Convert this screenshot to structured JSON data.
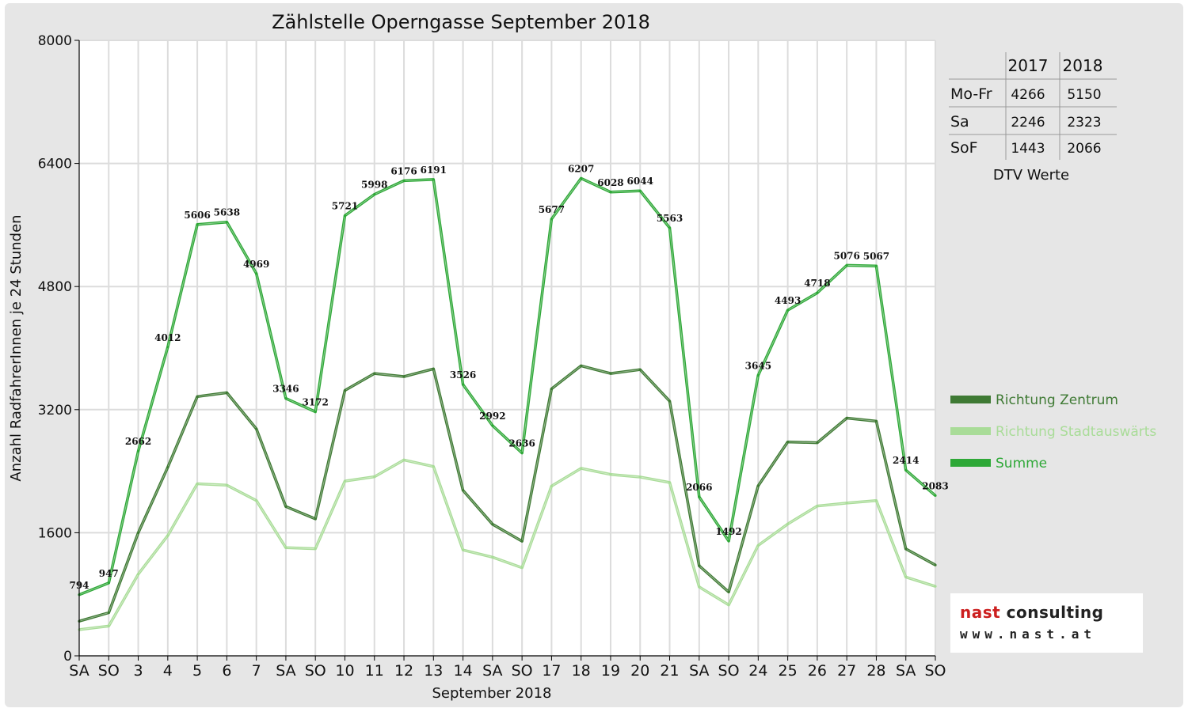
{
  "chart_data": {
    "type": "line",
    "title": "Zählstelle Operngasse September 2018",
    "xlabel": "September 2018",
    "ylabel": "Anzahl RadfahrerInnen je 24 Stunden",
    "ylim": [
      0,
      8000
    ],
    "yticks": [
      0,
      1600,
      3200,
      4800,
      6400,
      8000
    ],
    "grid": true,
    "legend_position": "right",
    "categories": [
      "SA",
      "SO",
      "3",
      "4",
      "5",
      "6",
      "7",
      "SA",
      "SO",
      "10",
      "11",
      "12",
      "13",
      "14",
      "SA",
      "SO",
      "17",
      "18",
      "19",
      "20",
      "21",
      "SA",
      "SO",
      "24",
      "25",
      "26",
      "27",
      "28",
      "SA",
      "SO"
    ],
    "weekend_flags": [
      false,
      true,
      false,
      false,
      false,
      false,
      false,
      false,
      true,
      false,
      false,
      false,
      false,
      false,
      false,
      true,
      false,
      false,
      false,
      false,
      false,
      false,
      true,
      false,
      false,
      false,
      false,
      false,
      false,
      true
    ],
    "series": [
      {
        "name": "Richtung Zentrum",
        "color": "#3f7a34",
        "values": [
          450,
          560,
          1600,
          2450,
          3370,
          3420,
          2950,
          1940,
          1780,
          3450,
          3670,
          3630,
          3730,
          2150,
          1710,
          1490,
          3470,
          3770,
          3670,
          3720,
          3310,
          1170,
          830,
          2210,
          2780,
          2770,
          3090,
          3050,
          1390,
          1180
        ]
      },
      {
        "name": "Richtung Stadtauswärts",
        "color": "#a9dc98",
        "values": [
          340,
          387,
          1062,
          1562,
          2236,
          2218,
          2019,
          1406,
          1392,
          2271,
          2328,
          2546,
          2461,
          1376,
          1282,
          1146,
          2207,
          2437,
          2358,
          2324,
          2253,
          896,
          662,
          1435,
          1713,
          1948,
          1986,
          2017,
          1024,
          903
        ]
      },
      {
        "name": "Summe",
        "color": "#2ea837",
        "values": [
          794,
          947,
          2662,
          4012,
          5606,
          5638,
          4969,
          3346,
          3172,
          5721,
          5998,
          6176,
          6191,
          3526,
          2992,
          2636,
          5677,
          6207,
          6028,
          6044,
          5563,
          2066,
          1492,
          3645,
          4493,
          4718,
          5076,
          5067,
          2414,
          2083
        ]
      }
    ],
    "data_labels": [
      "794",
      "947",
      "2662",
      "4012",
      "5606",
      "5638",
      "4969",
      "3346",
      "3172",
      "5721",
      "5998",
      "6176",
      "6191",
      "3526",
      "2992",
      "2636",
      "5677",
      "6207",
      "6028",
      "6044",
      "5563",
      "2066",
      "1492",
      "3645",
      "4493",
      "4718",
      "5076",
      "5067",
      "2414",
      "2083"
    ]
  },
  "legend": {
    "items": [
      {
        "label": "Richtung Zentrum",
        "color": "#3f7a34"
      },
      {
        "label": "Richtung Stadtauswärts",
        "color": "#a9dc98"
      },
      {
        "label": "Summe",
        "color": "#2ea837"
      }
    ]
  },
  "dtv_table": {
    "col_2017": "2017",
    "col_2018": "2018",
    "rows": [
      {
        "label": "Mo-Fr",
        "v2017": "4266",
        "v2018": "5150"
      },
      {
        "label": "Sa",
        "v2017": "2246",
        "v2018": "2323"
      },
      {
        "label": "SoF",
        "v2017": "1443",
        "v2018": "2066"
      }
    ],
    "caption": "DTV Werte"
  },
  "logo": {
    "brand_part1": "nast",
    "brand_part2": " consulting",
    "website": "www.nast.at"
  }
}
